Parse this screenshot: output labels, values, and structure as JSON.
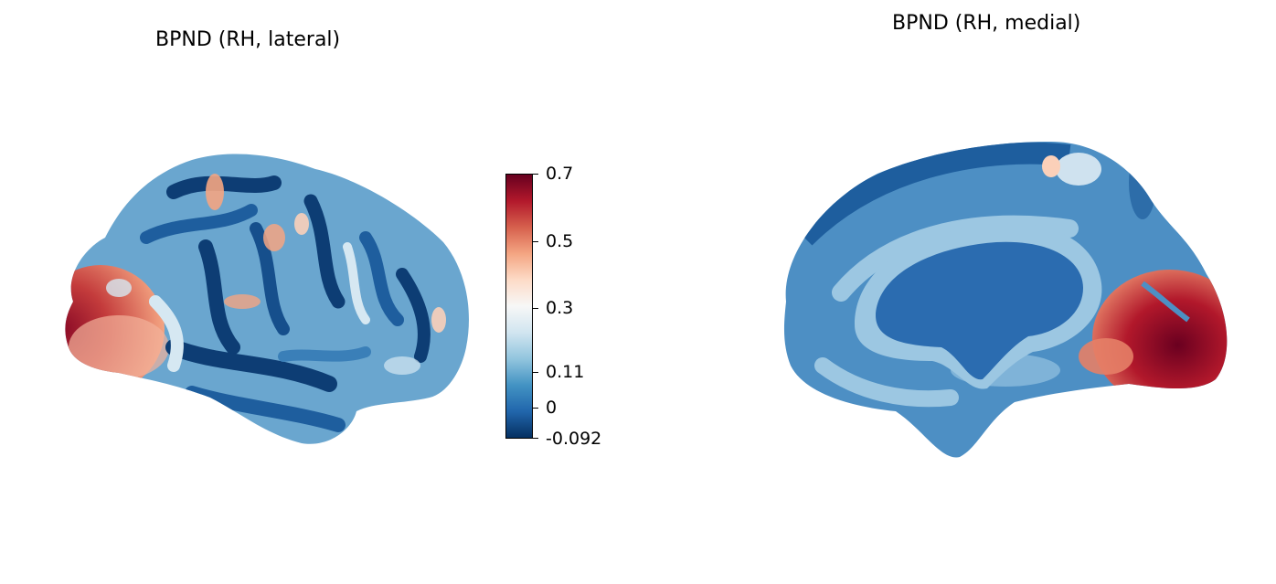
{
  "figure": {
    "left_panel": {
      "title": "BPND (RH, lateral)"
    },
    "right_panel": {
      "title": "BPND (RH, medial)"
    }
  },
  "colorbar": {
    "colormap": "RdBu_r",
    "min": -0.092,
    "max": 0.7,
    "ticks": [
      {
        "label": "0.7",
        "value": 0.7
      },
      {
        "label": "0.5",
        "value": 0.5
      },
      {
        "label": "0.3",
        "value": 0.3
      },
      {
        "label": "0.11",
        "value": 0.11
      },
      {
        "label": "0",
        "value": 0
      },
      {
        "label": "-0.092",
        "value": -0.092
      }
    ],
    "colors": [
      "#053061",
      "#2166ac",
      "#4393c3",
      "#92c5de",
      "#d1e5f0",
      "#f7f7f7",
      "#fddbc7",
      "#f4a582",
      "#d6604d",
      "#b2182b",
      "#67001f"
    ]
  }
}
